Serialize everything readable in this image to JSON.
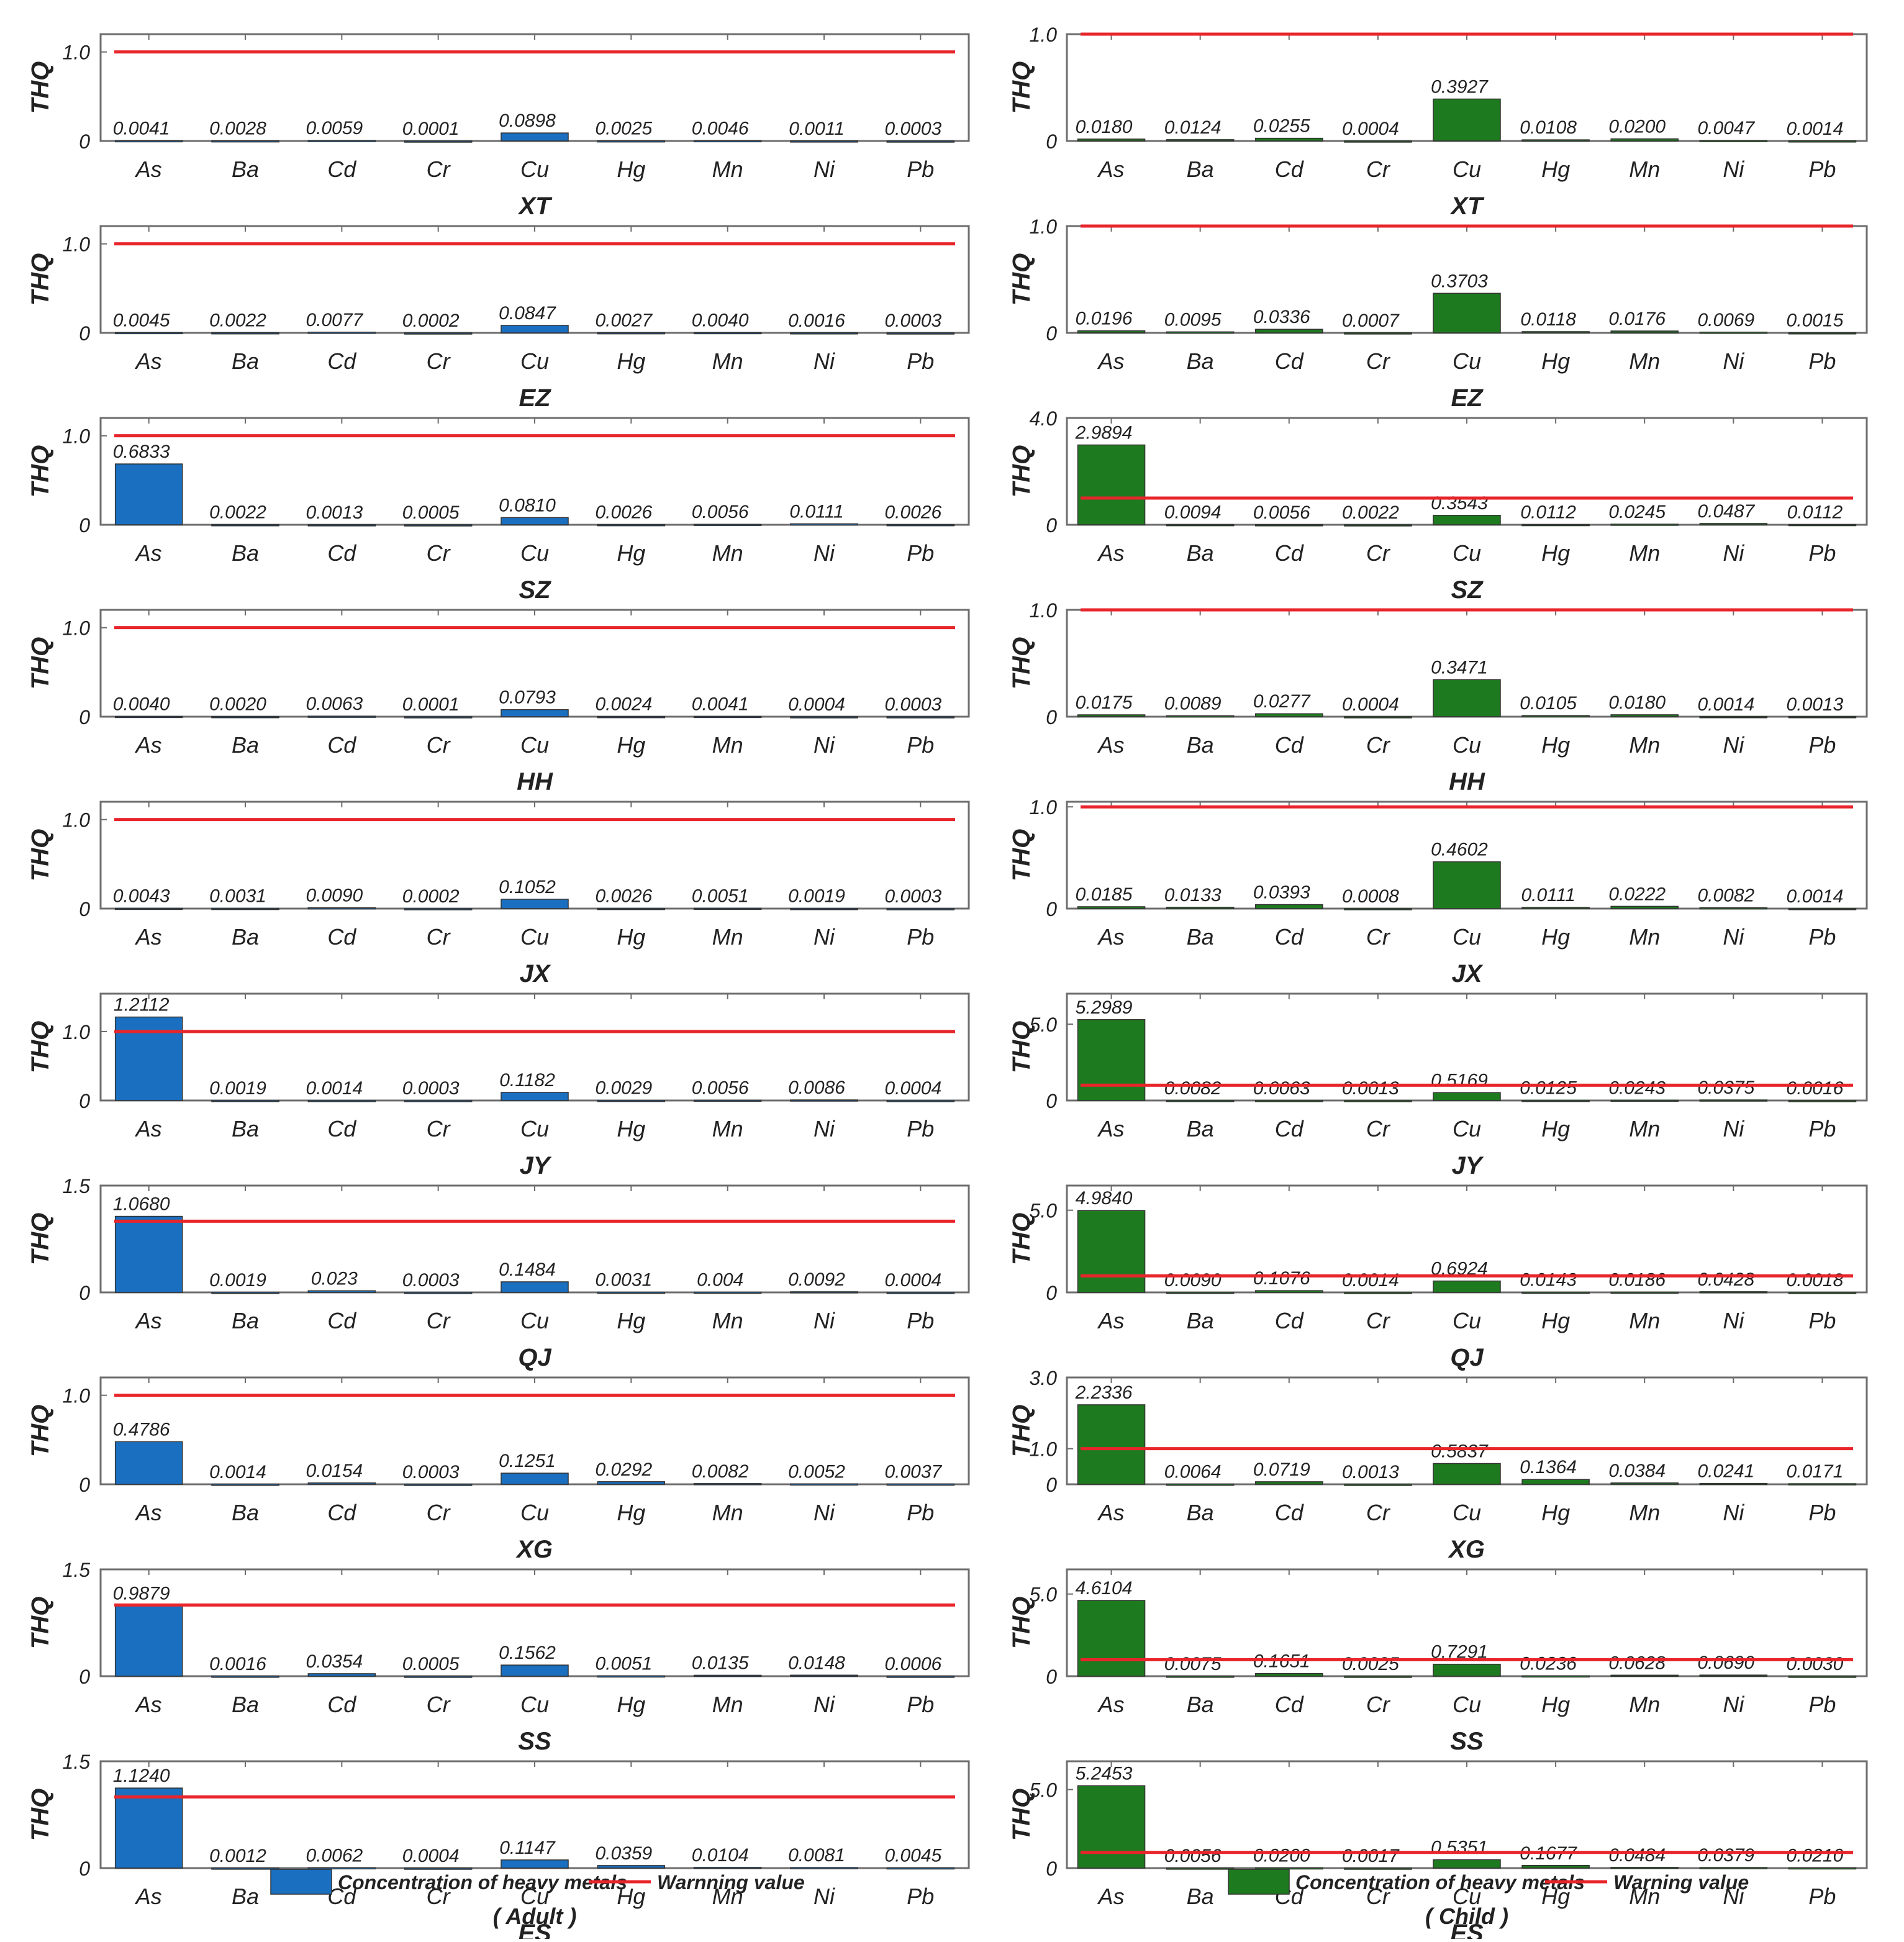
{
  "figure": {
    "metals": [
      "As",
      "Ba",
      "Cd",
      "Cr",
      "Cu",
      "Hg",
      "Mn",
      "Ni",
      "Pb"
    ],
    "colors": {
      "adult_bar": "#1a6fc0",
      "child_bar": "#1e7a1e",
      "warning_line": "#e8252b"
    },
    "warning_value": 1.0,
    "y_axis_label": "THQ",
    "groups": [
      {
        "key": "adult",
        "caption": "( Adult )",
        "legend": {
          "bar_label": "Concentration of heavy metals",
          "line_label": "Warnning value"
        }
      },
      {
        "key": "child",
        "caption": "( Child )",
        "legend": {
          "bar_label": "Concentration of heavy metals",
          "line_label": "Warning value"
        }
      }
    ]
  },
  "chart_data": [
    {
      "type": "bar",
      "group": "adult",
      "site": "XT",
      "categories": [
        "As",
        "Ba",
        "Cd",
        "Cr",
        "Cu",
        "Hg",
        "Mn",
        "Ni",
        "Pb"
      ],
      "values": [
        0.0041,
        0.0028,
        0.0059,
        0.0001,
        0.0898,
        0.0025,
        0.0046,
        0.0011,
        0.0003
      ],
      "labels": [
        "0.0041",
        "0.0028",
        "0.0059",
        "0.0001",
        "0.0898",
        "0.0025",
        "0.0046",
        "0.0011",
        "0.0003"
      ],
      "ylabel": "THQ",
      "ylim": [
        0,
        1.2
      ],
      "yticks": [
        0,
        1.0
      ],
      "ytick_labels": [
        "0",
        "1.0"
      ],
      "warning": 1.0
    },
    {
      "type": "bar",
      "group": "adult",
      "site": "EZ",
      "categories": [
        "As",
        "Ba",
        "Cd",
        "Cr",
        "Cu",
        "Hg",
        "Mn",
        "Ni",
        "Pb"
      ],
      "values": [
        0.0045,
        0.0022,
        0.0077,
        0.0002,
        0.0847,
        0.0027,
        0.004,
        0.0016,
        0.0003
      ],
      "labels": [
        "0.0045",
        "0.0022",
        "0.0077",
        "0.0002",
        "0.0847",
        "0.0027",
        "0.0040",
        "0.0016",
        "0.0003"
      ],
      "ylabel": "THQ",
      "ylim": [
        0,
        1.2
      ],
      "yticks": [
        0,
        1.0
      ],
      "ytick_labels": [
        "0",
        "1.0"
      ],
      "warning": 1.0
    },
    {
      "type": "bar",
      "group": "adult",
      "site": "SZ",
      "categories": [
        "As",
        "Ba",
        "Cd",
        "Cr",
        "Cu",
        "Hg",
        "Mn",
        "Ni",
        "Pb"
      ],
      "values": [
        0.6833,
        0.0022,
        0.0013,
        0.0005,
        0.081,
        0.0026,
        0.0056,
        0.0111,
        0.0026
      ],
      "labels": [
        "0.6833",
        "0.0022",
        "0.0013",
        "0.0005",
        "0.0810",
        "0.0026",
        "0.0056",
        "0.0111",
        "0.0026"
      ],
      "ylabel": "THQ",
      "ylim": [
        0,
        1.2
      ],
      "yticks": [
        0,
        1.0
      ],
      "ytick_labels": [
        "0",
        "1.0"
      ],
      "warning": 1.0
    },
    {
      "type": "bar",
      "group": "adult",
      "site": "HH",
      "categories": [
        "As",
        "Ba",
        "Cd",
        "Cr",
        "Cu",
        "Hg",
        "Mn",
        "Ni",
        "Pb"
      ],
      "values": [
        0.004,
        0.002,
        0.0063,
        0.0001,
        0.0793,
        0.0024,
        0.0041,
        0.0004,
        0.0003
      ],
      "labels": [
        "0.0040",
        "0.0020",
        "0.0063",
        "0.0001",
        "0.0793",
        "0.0024",
        "0.0041",
        "0.0004",
        "0.0003"
      ],
      "ylabel": "THQ",
      "ylim": [
        0,
        1.2
      ],
      "yticks": [
        0,
        1.0
      ],
      "ytick_labels": [
        "0",
        "1.0"
      ],
      "warning": 1.0
    },
    {
      "type": "bar",
      "group": "adult",
      "site": "JX",
      "categories": [
        "As",
        "Ba",
        "Cd",
        "Cr",
        "Cu",
        "Hg",
        "Mn",
        "Ni",
        "Pb"
      ],
      "values": [
        0.0043,
        0.0031,
        0.009,
        0.0002,
        0.1052,
        0.0026,
        0.0051,
        0.0019,
        0.0003
      ],
      "labels": [
        "0.0043",
        "0.0031",
        "0.0090",
        "0.0002",
        "0.1052",
        "0.0026",
        "0.0051",
        "0.0019",
        "0.0003"
      ],
      "ylabel": "THQ",
      "ylim": [
        0,
        1.2
      ],
      "yticks": [
        0,
        1.0
      ],
      "ytick_labels": [
        "0",
        "1.0"
      ],
      "warning": 1.0
    },
    {
      "type": "bar",
      "group": "adult",
      "site": "JY",
      "categories": [
        "As",
        "Ba",
        "Cd",
        "Cr",
        "Cu",
        "Hg",
        "Mn",
        "Ni",
        "Pb"
      ],
      "values": [
        1.2112,
        0.0019,
        0.0014,
        0.0003,
        0.1182,
        0.0029,
        0.0056,
        0.0086,
        0.0004
      ],
      "labels": [
        "1.2112",
        "0.0019",
        "0.0014",
        "0.0003",
        "0.1182",
        "0.0029",
        "0.0056",
        "0.0086",
        "0.0004"
      ],
      "ylabel": "THQ",
      "ylim": [
        0,
        1.55
      ],
      "yticks": [
        0,
        1.0
      ],
      "ytick_labels": [
        "0",
        "1.0"
      ],
      "warning": 1.0
    },
    {
      "type": "bar",
      "group": "adult",
      "site": "QJ",
      "categories": [
        "As",
        "Ba",
        "Cd",
        "Cr",
        "Cu",
        "Hg",
        "Mn",
        "Ni",
        "Pb"
      ],
      "values": [
        1.068,
        0.0019,
        0.023,
        0.0003,
        0.1484,
        0.0031,
        0.004,
        0.0092,
        0.0004
      ],
      "labels": [
        "1.0680",
        "0.0019",
        "0.023",
        "0.0003",
        "0.1484",
        "0.0031",
        "0.004",
        "0.0092",
        "0.0004"
      ],
      "ylabel": "THQ",
      "ylim": [
        0,
        1.5
      ],
      "yticks": [
        0,
        1.5
      ],
      "ytick_labels": [
        "0",
        "1.5"
      ],
      "warning": 1.0
    },
    {
      "type": "bar",
      "group": "adult",
      "site": "XG",
      "categories": [
        "As",
        "Ba",
        "Cd",
        "Cr",
        "Cu",
        "Hg",
        "Mn",
        "Ni",
        "Pb"
      ],
      "values": [
        0.4786,
        0.0014,
        0.0154,
        0.0003,
        0.1251,
        0.0292,
        0.0082,
        0.0052,
        0.0037
      ],
      "labels": [
        "0.4786",
        "0.0014",
        "0.0154",
        "0.0003",
        "0.1251",
        "0.0292",
        "0.0082",
        "0.0052",
        "0.0037"
      ],
      "ylabel": "THQ",
      "ylim": [
        0,
        1.2
      ],
      "yticks": [
        0,
        1.0
      ],
      "ytick_labels": [
        "0",
        "1.0"
      ],
      "warning": 1.0
    },
    {
      "type": "bar",
      "group": "adult",
      "site": "SS",
      "categories": [
        "As",
        "Ba",
        "Cd",
        "Cr",
        "Cu",
        "Hg",
        "Mn",
        "Ni",
        "Pb"
      ],
      "values": [
        0.9879,
        0.0016,
        0.0354,
        0.0005,
        0.1562,
        0.0051,
        0.0135,
        0.0148,
        0.0006
      ],
      "labels": [
        "0.9879",
        "0.0016",
        "0.0354",
        "0.0005",
        "0.1562",
        "0.0051",
        "0.0135",
        "0.0148",
        "0.0006"
      ],
      "ylabel": "THQ",
      "ylim": [
        0,
        1.5
      ],
      "yticks": [
        0,
        1.5
      ],
      "ytick_labels": [
        "0",
        "1.5"
      ],
      "warning": 1.0
    },
    {
      "type": "bar",
      "group": "adult",
      "site": "ES",
      "categories": [
        "As",
        "Ba",
        "Cd",
        "Cr",
        "Cu",
        "Hg",
        "Mn",
        "Ni",
        "Pb"
      ],
      "values": [
        1.124,
        0.0012,
        0.0062,
        0.0004,
        0.1147,
        0.0359,
        0.0104,
        0.0081,
        0.0045
      ],
      "labels": [
        "1.1240",
        "0.0012",
        "0.0062",
        "0.0004",
        "0.1147",
        "0.0359",
        "0.0104",
        "0.0081",
        "0.0045"
      ],
      "ylabel": "THQ",
      "ylim": [
        0,
        1.5
      ],
      "yticks": [
        0,
        1.5
      ],
      "ytick_labels": [
        "0",
        "1.5"
      ],
      "warning": 1.0
    },
    {
      "type": "bar",
      "group": "child",
      "site": "XT",
      "categories": [
        "As",
        "Ba",
        "Cd",
        "Cr",
        "Cu",
        "Hg",
        "Mn",
        "Ni",
        "Pb"
      ],
      "values": [
        0.018,
        0.0124,
        0.0255,
        0.0004,
        0.3927,
        0.0108,
        0.02,
        0.0047,
        0.0014
      ],
      "labels": [
        "0.0180",
        "0.0124",
        "0.0255",
        "0.0004",
        "0.3927",
        "0.0108",
        "0.0200",
        "0.0047",
        "0.0014"
      ],
      "ylabel": "THQ",
      "ylim": [
        0,
        1.0
      ],
      "yticks": [
        0,
        1.0
      ],
      "ytick_labels": [
        "0",
        "1.0"
      ],
      "warning": 1.0
    },
    {
      "type": "bar",
      "group": "child",
      "site": "EZ",
      "categories": [
        "As",
        "Ba",
        "Cd",
        "Cr",
        "Cu",
        "Hg",
        "Mn",
        "Ni",
        "Pb"
      ],
      "values": [
        0.0196,
        0.0095,
        0.0336,
        0.0007,
        0.3703,
        0.0118,
        0.0176,
        0.0069,
        0.0015
      ],
      "labels": [
        "0.0196",
        "0.0095",
        "0.0336",
        "0.0007",
        "0.3703",
        "0.0118",
        "0.0176",
        "0.0069",
        "0.0015"
      ],
      "ylabel": "THQ",
      "ylim": [
        0,
        1.0
      ],
      "yticks": [
        0,
        1.0
      ],
      "ytick_labels": [
        "0",
        "1.0"
      ],
      "warning": 1.0
    },
    {
      "type": "bar",
      "group": "child",
      "site": "SZ",
      "categories": [
        "As",
        "Ba",
        "Cd",
        "Cr",
        "Cu",
        "Hg",
        "Mn",
        "Ni",
        "Pb"
      ],
      "values": [
        2.9894,
        0.0094,
        0.0056,
        0.0022,
        0.3543,
        0.0112,
        0.0245,
        0.0487,
        0.0112
      ],
      "labels": [
        "2.9894",
        "0.0094",
        "0.0056",
        "0.0022",
        "0.3543",
        "0.0112",
        "0.0245",
        "0.0487",
        "0.0112"
      ],
      "ylabel": "THQ",
      "ylim": [
        0,
        4.0
      ],
      "yticks": [
        0,
        4.0
      ],
      "ytick_labels": [
        "0",
        "4.0"
      ],
      "warning": 1.0
    },
    {
      "type": "bar",
      "group": "child",
      "site": "HH",
      "categories": [
        "As",
        "Ba",
        "Cd",
        "Cr",
        "Cu",
        "Hg",
        "Mn",
        "Ni",
        "Pb"
      ],
      "values": [
        0.0175,
        0.0089,
        0.0277,
        0.0004,
        0.3471,
        0.0105,
        0.018,
        0.0014,
        0.0013
      ],
      "labels": [
        "0.0175",
        "0.0089",
        "0.0277",
        "0.0004",
        "0.3471",
        "0.0105",
        "0.0180",
        "0.0014",
        "0.0013"
      ],
      "ylabel": "THQ",
      "ylim": [
        0,
        1.0
      ],
      "yticks": [
        0,
        1.0
      ],
      "ytick_labels": [
        "0",
        "1.0"
      ],
      "warning": 1.0
    },
    {
      "type": "bar",
      "group": "child",
      "site": "JX",
      "categories": [
        "As",
        "Ba",
        "Cd",
        "Cr",
        "Cu",
        "Hg",
        "Mn",
        "Ni",
        "Pb"
      ],
      "values": [
        0.0185,
        0.0133,
        0.0393,
        0.0008,
        0.4602,
        0.0111,
        0.0222,
        0.0082,
        0.0014
      ],
      "labels": [
        "0.0185",
        "0.0133",
        "0.0393",
        "0.0008",
        "0.4602",
        "0.0111",
        "0.0222",
        "0.0082",
        "0.0014"
      ],
      "ylabel": "THQ",
      "ylim": [
        0,
        1.05
      ],
      "yticks": [
        0,
        1.0
      ],
      "ytick_labels": [
        "0",
        "1.0"
      ],
      "warning": 1.0
    },
    {
      "type": "bar",
      "group": "child",
      "site": "JY",
      "categories": [
        "As",
        "Ba",
        "Cd",
        "Cr",
        "Cu",
        "Hg",
        "Mn",
        "Ni",
        "Pb"
      ],
      "values": [
        5.2989,
        0.0082,
        0.0063,
        0.0013,
        0.5169,
        0.0125,
        0.0243,
        0.0375,
        0.0016
      ],
      "labels": [
        "5.2989",
        "0.0082",
        "0.0063",
        "0.0013",
        "0.5169",
        "0.0125",
        "0.0243",
        "0.0375",
        "0.0016"
      ],
      "ylabel": "THQ",
      "ylim": [
        0,
        7.0
      ],
      "yticks": [
        0,
        5.0
      ],
      "ytick_labels": [
        "0",
        "5.0"
      ],
      "warning": 1.0
    },
    {
      "type": "bar",
      "group": "child",
      "site": "QJ",
      "categories": [
        "As",
        "Ba",
        "Cd",
        "Cr",
        "Cu",
        "Hg",
        "Mn",
        "Ni",
        "Pb"
      ],
      "values": [
        4.984,
        0.009,
        0.1076,
        0.0014,
        0.6924,
        0.0143,
        0.0186,
        0.0428,
        0.0018
      ],
      "labels": [
        "4.9840",
        "0.0090",
        "0.1076",
        "0.0014",
        "0.6924",
        "0.0143",
        "0.0186",
        "0.0428",
        "0.0018"
      ],
      "ylabel": "THQ",
      "ylim": [
        0,
        6.5
      ],
      "yticks": [
        0,
        5.0
      ],
      "ytick_labels": [
        "0",
        "5.0"
      ],
      "warning": 1.0
    },
    {
      "type": "bar",
      "group": "child",
      "site": "XG",
      "categories": [
        "As",
        "Ba",
        "Cd",
        "Cr",
        "Cu",
        "Hg",
        "Mn",
        "Ni",
        "Pb"
      ],
      "values": [
        2.2336,
        0.0064,
        0.0719,
        0.0013,
        0.5837,
        0.1364,
        0.0384,
        0.0241,
        0.0171
      ],
      "labels": [
        "2.2336",
        "0.0064",
        "0.0719",
        "0.0013",
        "0.5837",
        "0.1364",
        "0.0384",
        "0.0241",
        "0.0171"
      ],
      "ylabel": "THQ",
      "ylim": [
        0,
        3.0
      ],
      "yticks": [
        0,
        1.0,
        3.0
      ],
      "ytick_labels": [
        "0",
        "1.0",
        "3.0"
      ],
      "warning": 1.0
    },
    {
      "type": "bar",
      "group": "child",
      "site": "SS",
      "categories": [
        "As",
        "Ba",
        "Cd",
        "Cr",
        "Cu",
        "Hg",
        "Mn",
        "Ni",
        "Pb"
      ],
      "values": [
        4.6104,
        0.0075,
        0.1651,
        0.0025,
        0.7291,
        0.0236,
        0.0628,
        0.069,
        0.003
      ],
      "labels": [
        "4.6104",
        "0.0075",
        "0.1651",
        "0.0025",
        "0.7291",
        "0.0236",
        "0.0628",
        "0.0690",
        "0.0030"
      ],
      "ylabel": "THQ",
      "ylim": [
        0,
        6.5
      ],
      "yticks": [
        0,
        5.0
      ],
      "ytick_labels": [
        "0",
        "5.0"
      ],
      "warning": 1.0
    },
    {
      "type": "bar",
      "group": "child",
      "site": "ES",
      "categories": [
        "As",
        "Ba",
        "Cd",
        "Cr",
        "Cu",
        "Hg",
        "Mn",
        "Ni",
        "Pb"
      ],
      "values": [
        5.2453,
        0.0056,
        0.02,
        0.0017,
        0.5351,
        0.1677,
        0.0484,
        0.0379,
        0.021
      ],
      "labels": [
        "5.2453",
        "0.0056",
        "0.0200",
        "0.0017",
        "0.5351",
        "0.1677",
        "0.0484",
        "0.0379",
        "0.0210"
      ],
      "ylabel": "THQ",
      "ylim": [
        0,
        6.8
      ],
      "yticks": [
        0,
        5.0
      ],
      "ytick_labels": [
        "0",
        "5.0"
      ],
      "warning": 1.0
    }
  ]
}
